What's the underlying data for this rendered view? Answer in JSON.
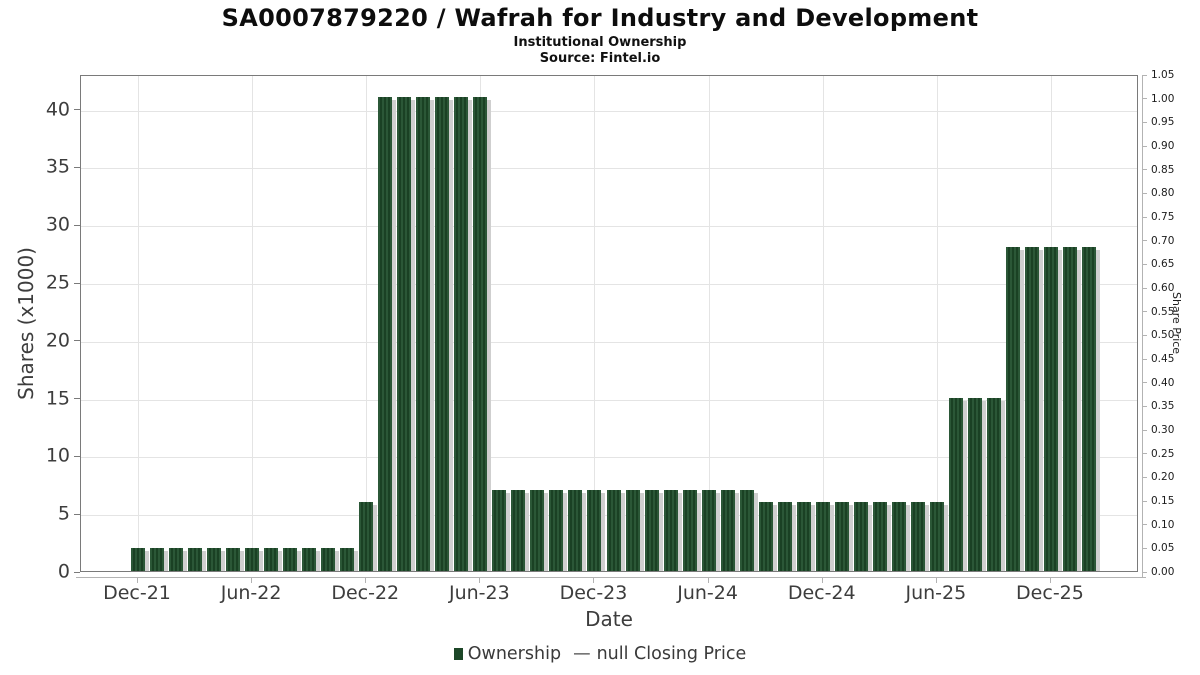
{
  "chart_data": {
    "type": "bar",
    "title": "SA0007879220 / Wafrah for Industry and Development",
    "subtitle": "Institutional Ownership",
    "source": "Source: Fintel.io",
    "xlabel": "Date",
    "grid": true,
    "x": [
      "Dec-21",
      "Jan-22",
      "Feb-22",
      "Mar-22",
      "Apr-22",
      "May-22",
      "Jun-22",
      "Jul-22",
      "Aug-22",
      "Sep-22",
      "Oct-22",
      "Nov-22",
      "Dec-22",
      "Jan-23",
      "Feb-23",
      "Mar-23",
      "Apr-23",
      "May-23",
      "Jun-23",
      "Jul-23",
      "Aug-23",
      "Sep-23",
      "Oct-23",
      "Nov-23",
      "Dec-23",
      "Jan-24",
      "Feb-24",
      "Mar-24",
      "Apr-24",
      "May-24",
      "Jun-24",
      "Jul-24",
      "Aug-24",
      "Sep-24",
      "Oct-24",
      "Nov-24",
      "Dec-24",
      "Jan-25",
      "Feb-25",
      "Mar-25",
      "Apr-25",
      "May-25",
      "Jun-25",
      "Jul-25",
      "Aug-25",
      "Sep-25",
      "Oct-25",
      "Nov-25",
      "Dec-25",
      "Jan-26",
      "Feb-26"
    ],
    "values": [
      2,
      2,
      2,
      2,
      2,
      2,
      2,
      2,
      2,
      2,
      2,
      2,
      6,
      41,
      41,
      41,
      41,
      41,
      41,
      7,
      7,
      7,
      7,
      7,
      7,
      7,
      7,
      7,
      7,
      7,
      7,
      7,
      7,
      6,
      6,
      6,
      6,
      6,
      6,
      6,
      6,
      6,
      6,
      15,
      15,
      15,
      28,
      28,
      28,
      28,
      28
    ],
    "series_name": "Ownership",
    "x_ticks": [
      {
        "label": "Dec-21",
        "index": 0
      },
      {
        "label": "Jun-22",
        "index": 6
      },
      {
        "label": "Dec-22",
        "index": 12
      },
      {
        "label": "Jun-23",
        "index": 18
      },
      {
        "label": "Dec-23",
        "index": 24
      },
      {
        "label": "Jun-24",
        "index": 30
      },
      {
        "label": "Dec-24",
        "index": 36
      },
      {
        "label": "Jun-25",
        "index": 42
      },
      {
        "label": "Dec-25",
        "index": 48
      }
    ],
    "left_axis": {
      "label": "Shares (x1000)",
      "ticks": [
        0,
        5,
        10,
        15,
        20,
        25,
        30,
        35,
        40
      ],
      "range": [
        0,
        43
      ]
    },
    "right_axis": {
      "label": "Share Price",
      "ticks": [
        "0.00",
        "0.05",
        "0.10",
        "0.15",
        "0.20",
        "0.25",
        "0.30",
        "0.35",
        "0.40",
        "0.45",
        "0.50",
        "0.55",
        "0.60",
        "0.65",
        "0.70",
        "0.75",
        "0.80",
        "0.85",
        "0.90",
        "0.95",
        "1.00",
        "1.05"
      ],
      "range": [
        0,
        1.05
      ]
    },
    "legend": {
      "ownership_label": "Ownership",
      "dash": "—",
      "price_label": "null Closing Price",
      "position": "bottom-center"
    },
    "colors": {
      "bar_green": "#1d4728",
      "bar_stripe_light": "#2b5737",
      "bar_stripe_dark": "#1a4124",
      "bar_shadow": "#9e9e9e",
      "grid": "#e4e4e4",
      "spine": "#7a7a7a",
      "tick_text": "#3d3d3d"
    }
  }
}
